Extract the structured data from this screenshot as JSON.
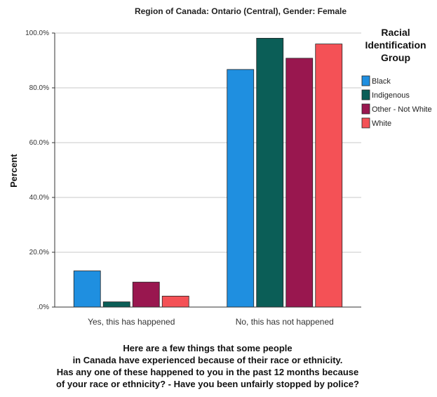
{
  "chart_data": {
    "type": "bar",
    "title": "Region of Canada: Ontario (Central), Gender: Female",
    "ylabel": "Percent",
    "xlabel_lines": [
      "Here are a few things that some people",
      "in Canada have experienced because of their race or ethnicity.",
      "Has any one of these happened to you in the past 12 months because",
      "of your race or ethnicity? - Have you been unfairly stopped by police?"
    ],
    "categories": [
      "Yes, this has happened",
      "No, this has not happened"
    ],
    "ylim": [
      0,
      100
    ],
    "yticks": [
      0,
      20,
      40,
      60,
      80,
      100
    ],
    "ytick_labels": [
      ".0%",
      "20.0%",
      "40.0%",
      "60.0%",
      "80.0%",
      "100.0%"
    ],
    "grid": true,
    "legend_title_lines": [
      "Racial",
      "Identification",
      "Group"
    ],
    "legend_position": "right",
    "series": [
      {
        "name": "Black",
        "color": "#1f8fe0",
        "values": [
          13.2,
          86.7
        ]
      },
      {
        "name": "Indigenous",
        "color": "#0b5e57",
        "values": [
          1.9,
          98.1
        ]
      },
      {
        "name": "Other - Not White",
        "color": "#99174f",
        "values": [
          9.1,
          90.8
        ]
      },
      {
        "name": "White",
        "color": "#f45156",
        "values": [
          4.0,
          96.0
        ]
      }
    ]
  }
}
